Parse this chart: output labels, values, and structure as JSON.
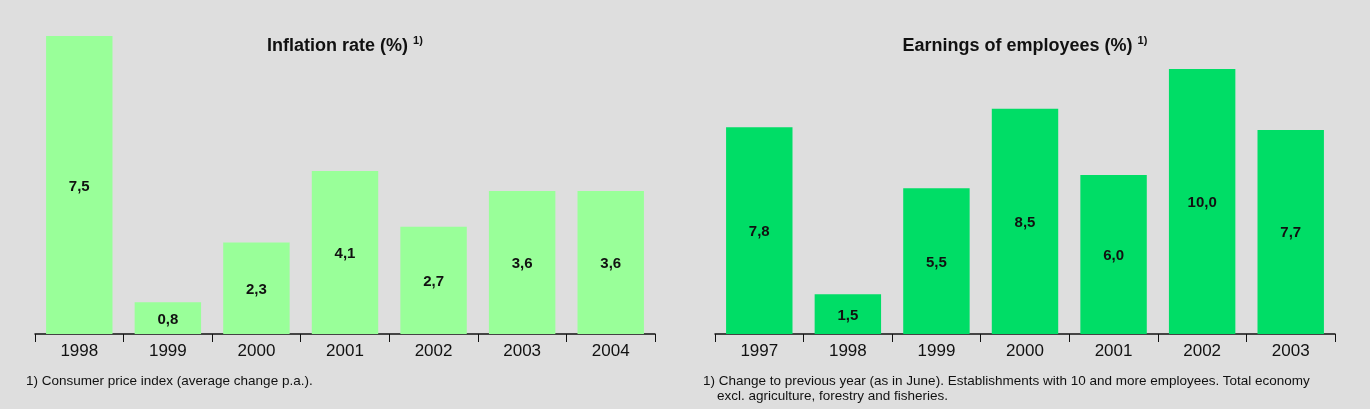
{
  "chart_data": [
    {
      "type": "bar",
      "title": "Inflation rate (%) $^{1)}$",
      "categories": [
        "1998",
        "1999",
        "2000",
        "2001",
        "2002",
        "2003",
        "2004"
      ],
      "values": [
        7.5,
        0.8,
        2.3,
        4.1,
        2.7,
        3.6,
        3.6
      ],
      "color": "#99ff99",
      "value_labels": [
        "7,5",
        "0,8",
        "2,3",
        "4,1",
        "2,7",
        "3,6",
        "3,6"
      ],
      "annotations": [
        "1) Consumer price index (average change p.a.)."
      ]
    },
    {
      "type": "bar",
      "title": "Earnings of employees (%) $^{1)}$",
      "categories": [
        "1997",
        "1998",
        "1999",
        "2000",
        "2001",
        "2002",
        "2003"
      ],
      "values": [
        7.8,
        1.5,
        5.5,
        8.5,
        6.0,
        10.0,
        7.7
      ],
      "color": "#00dd66",
      "value_labels": [
        "7,8",
        "1,5",
        "5,5",
        "8,5",
        "6,0",
        "10,0",
        "7,7"
      ],
      "annotations": [
        "1) Change to previous year (as in June). Establishments with 10 and more employees. Total economy excl. agriculture, forestry and fisheries."
      ]
    }
  ]
}
